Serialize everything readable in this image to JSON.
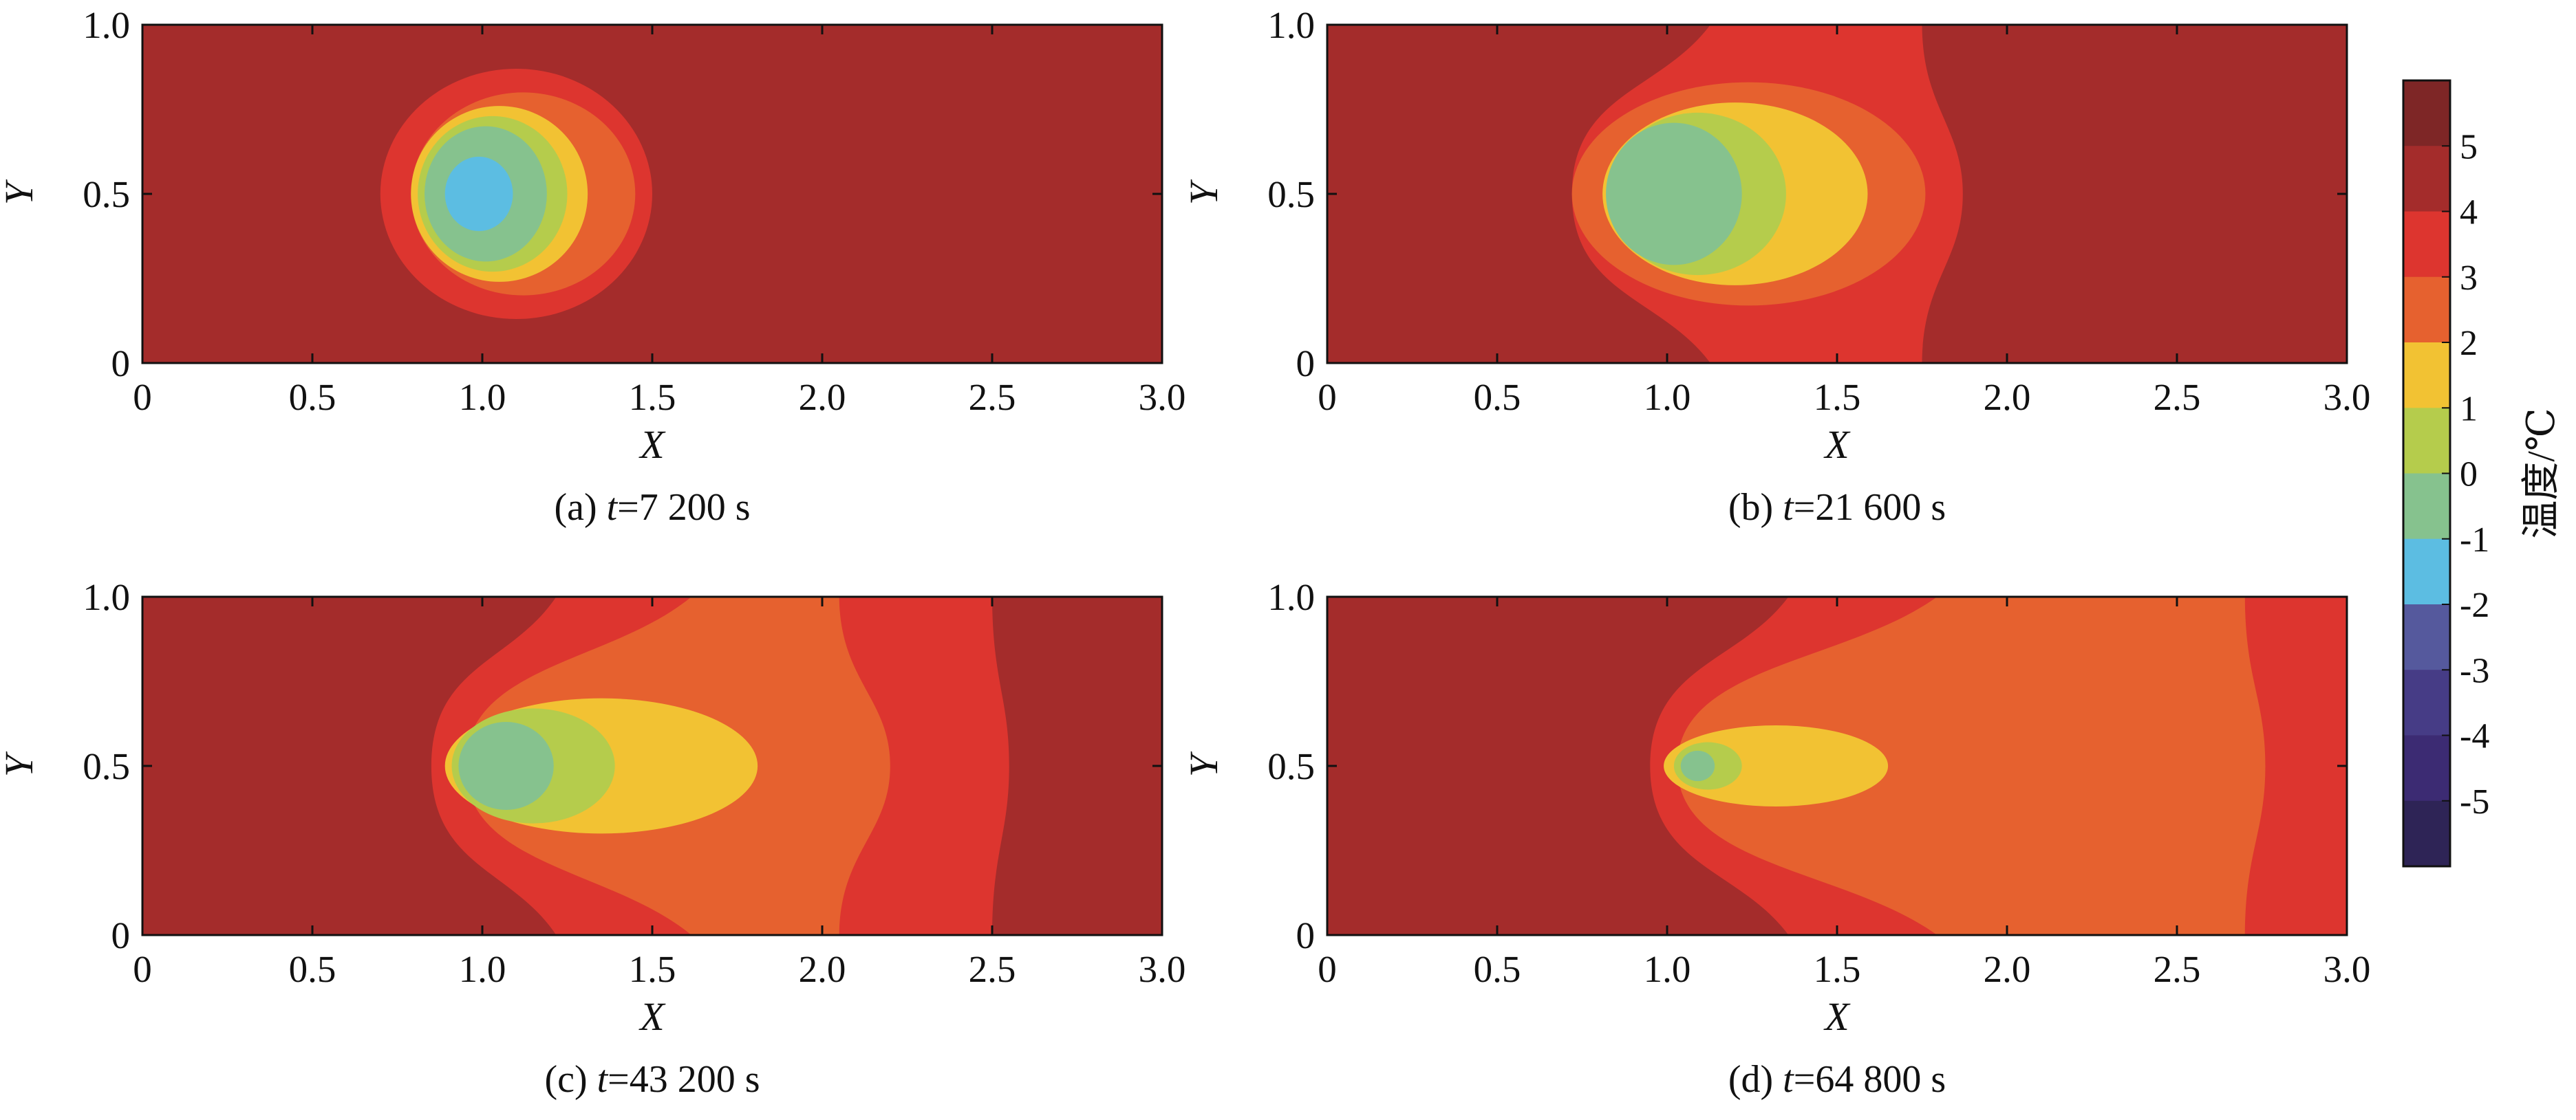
{
  "chart_data": {
    "type": "heatmap",
    "colorbar": {
      "label": "温度/℃",
      "ticks": [
        "5",
        "4",
        "3",
        "2",
        "1",
        "0",
        "-1",
        "-2",
        "-3",
        "-4",
        "-5"
      ],
      "colors": [
        "#7e2626",
        "#a42c2b",
        "#dd352f",
        "#e6612f",
        "#f2c233",
        "#b5cc4c",
        "#86c28e",
        "#5cbde2",
        "#55599d",
        "#463c86",
        "#3c2b73",
        "#2e2456"
      ],
      "vmin": -5.5,
      "vmax": 5.5
    },
    "panels": [
      {
        "caption_prefix": "(a) ",
        "caption_var": "t",
        "caption_value": "=7 200 s",
        "xlabel": "X",
        "ylabel": "Y",
        "xlim": [
          0,
          3.0
        ],
        "ylim": [
          0,
          1.0
        ],
        "xticks": [
          "0",
          "0.5",
          "1.0",
          "1.5",
          "2.0",
          "2.5",
          "3.0"
        ],
        "yticks": [
          "0",
          "0.5",
          "1.0"
        ],
        "background_level": 4.5,
        "regions": [
          {
            "level": 3.5,
            "cx": 1.1,
            "cy": 0.5,
            "rx": 0.4,
            "ry": 0.37
          },
          {
            "level": 2.5,
            "cx": 1.12,
            "cy": 0.5,
            "rx": 0.33,
            "ry": 0.3
          },
          {
            "level": 1.5,
            "cx": 1.05,
            "cy": 0.5,
            "rx": 0.26,
            "ry": 0.26
          },
          {
            "level": 0.5,
            "cx": 1.03,
            "cy": 0.5,
            "rx": 0.22,
            "ry": 0.23
          },
          {
            "level": -0.5,
            "cx": 1.01,
            "cy": 0.5,
            "rx": 0.18,
            "ry": 0.2
          },
          {
            "level": -1.5,
            "cx": 0.99,
            "cy": 0.5,
            "rx": 0.1,
            "ry": 0.11
          }
        ]
      },
      {
        "caption_prefix": "(b) ",
        "caption_var": "t",
        "caption_value": "=21 600 s",
        "xlabel": "X",
        "ylabel": "Y",
        "xlim": [
          0,
          3.0
        ],
        "ylim": [
          0,
          1.0
        ],
        "xticks": [
          "0",
          "0.5",
          "1.0",
          "1.5",
          "2.0",
          "2.5",
          "3.0"
        ],
        "yticks": [
          "0",
          "0.5",
          "1.0"
        ],
        "background_level": 4.5,
        "band": {
          "level": 3.5,
          "x_left_top": 1.13,
          "x_left_mid": 0.72,
          "x_left_bottom": 1.13,
          "x_right_top": 1.75,
          "x_right_mid": 1.87,
          "x_right_bottom": 1.75
        },
        "regions": [
          {
            "level": 2.5,
            "cx": 1.24,
            "cy": 0.5,
            "rx": 0.52,
            "ry": 0.33
          },
          {
            "level": 1.5,
            "cx": 1.2,
            "cy": 0.5,
            "rx": 0.39,
            "ry": 0.27
          },
          {
            "level": 0.5,
            "cx": 1.09,
            "cy": 0.5,
            "rx": 0.26,
            "ry": 0.24
          },
          {
            "level": -0.5,
            "cx": 1.02,
            "cy": 0.5,
            "rx": 0.2,
            "ry": 0.21
          }
        ]
      },
      {
        "caption_prefix": "(c) ",
        "caption_var": "t",
        "caption_value": "=43 200 s",
        "xlabel": "X",
        "ylabel": "Y",
        "xlim": [
          0,
          3.0
        ],
        "ylim": [
          0,
          1.0
        ],
        "xticks": [
          "0",
          "0.5",
          "1.0",
          "1.5",
          "2.0",
          "2.5",
          "3.0"
        ],
        "yticks": [
          "0",
          "0.5",
          "1.0"
        ],
        "background_level": 4.5,
        "band": {
          "level": 3.5,
          "x_left_top": 1.22,
          "x_left_mid": 0.85,
          "x_left_bottom": 1.22,
          "x_right_top": 2.5,
          "x_right_mid": 2.55,
          "x_right_bottom": 2.5
        },
        "band2": {
          "level": 2.5,
          "x_left_top": 1.62,
          "x_left_mid": 0.95,
          "x_left_bottom": 1.62,
          "x_right_top": 2.05,
          "x_right_mid": 2.2,
          "x_right_bottom": 2.05
        },
        "regions": [
          {
            "level": 1.5,
            "cx": 1.35,
            "cy": 0.5,
            "rx": 0.46,
            "ry": 0.2
          },
          {
            "level": 0.5,
            "cx": 1.15,
            "cy": 0.5,
            "rx": 0.24,
            "ry": 0.17
          },
          {
            "level": -0.5,
            "cx": 1.07,
            "cy": 0.5,
            "rx": 0.14,
            "ry": 0.13
          }
        ]
      },
      {
        "caption_prefix": "(d) ",
        "caption_var": "t",
        "caption_value": "=64 800 s",
        "xlabel": "X",
        "ylabel": "Y",
        "xlim": [
          0,
          3.0
        ],
        "ylim": [
          0,
          1.0
        ],
        "xticks": [
          "0",
          "0.5",
          "1.0",
          "1.5",
          "2.0",
          "2.5",
          "3.0"
        ],
        "yticks": [
          "0",
          "0.5",
          "1.0"
        ],
        "background_level": 4.5,
        "band": {
          "level": 3.5,
          "x_left_top": 1.36,
          "x_left_mid": 0.95,
          "x_left_bottom": 1.36,
          "x_right_top": 3.2,
          "x_right_mid": 3.2,
          "x_right_bottom": 3.2
        },
        "band2": {
          "level": 2.5,
          "x_left_top": 1.8,
          "x_left_mid": 1.03,
          "x_left_bottom": 1.8,
          "x_right_top": 2.7,
          "x_right_mid": 2.76,
          "x_right_bottom": 2.7
        },
        "regions": [
          {
            "level": 1.5,
            "cx": 1.32,
            "cy": 0.5,
            "rx": 0.33,
            "ry": 0.12
          },
          {
            "level": 0.5,
            "cx": 1.12,
            "cy": 0.5,
            "rx": 0.1,
            "ry": 0.07
          },
          {
            "level": -0.5,
            "cx": 1.09,
            "cy": 0.5,
            "rx": 0.05,
            "ry": 0.045
          }
        ]
      }
    ]
  }
}
